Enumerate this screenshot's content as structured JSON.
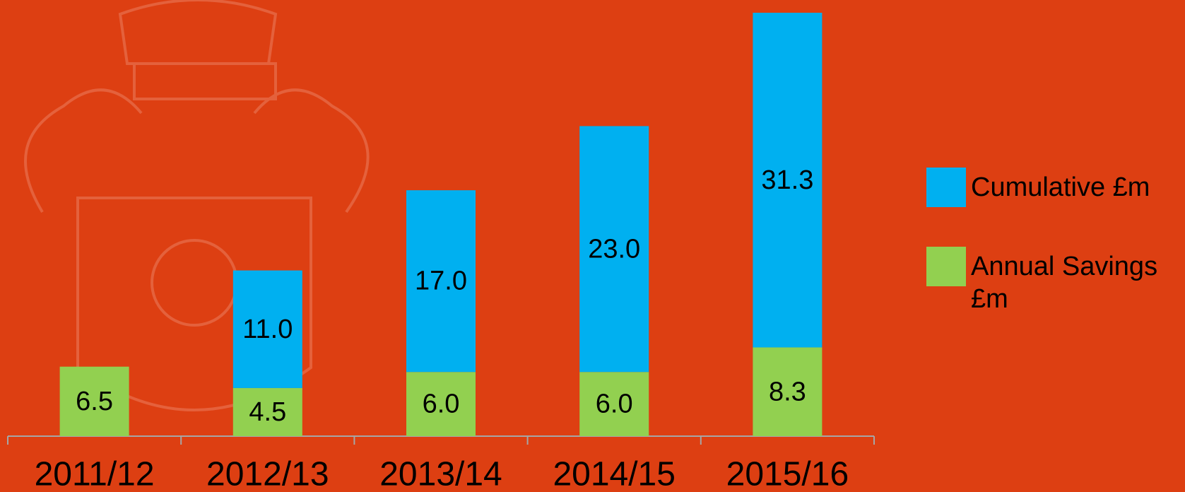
{
  "chart_data": {
    "type": "stacked_bar",
    "categories": [
      "2011/12",
      "2012/13",
      "2013/14",
      "2014/15",
      "2015/16"
    ],
    "series": [
      {
        "name": "Annual Savings £m",
        "color": "#92d050",
        "values": [
          6.5,
          4.5,
          6.0,
          6.0,
          8.3
        ],
        "value_labels": [
          "6.5",
          "4.5",
          "6.0",
          "6.0",
          "8.3"
        ]
      },
      {
        "name": "Cumulative £m",
        "color": "#00b0f0",
        "values": [
          null,
          11.0,
          17.0,
          23.0,
          31.3
        ],
        "value_labels": [
          null,
          "11.0",
          "17.0",
          "23.0",
          "31.3"
        ]
      }
    ],
    "ylim": [
      0,
      40
    ],
    "legend": "right"
  }
}
